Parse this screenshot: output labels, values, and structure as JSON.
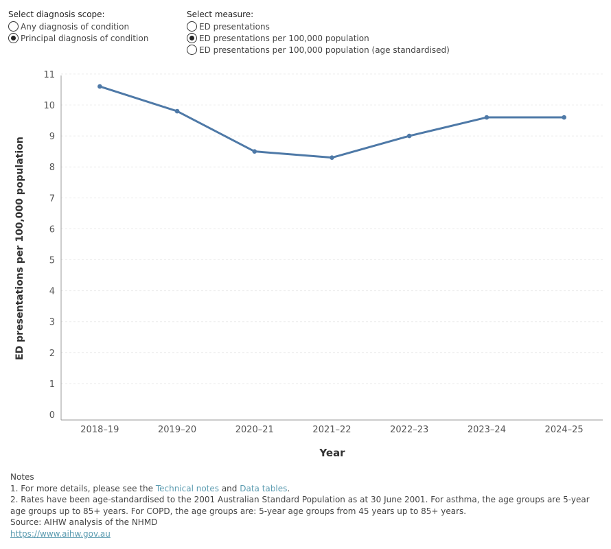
{
  "scope": {
    "title": "Select diagnosis scope:",
    "options": [
      {
        "label": "Any diagnosis of condition",
        "selected": false
      },
      {
        "label": "Principal diagnosis of condition",
        "selected": true
      }
    ]
  },
  "measure": {
    "title": "Select measure:",
    "options": [
      {
        "label": "ED presentations",
        "selected": false
      },
      {
        "label": "ED presentations per 100,000 population",
        "selected": true
      },
      {
        "label": "ED presentations per 100,000 population (age standardised)",
        "selected": false
      }
    ]
  },
  "chart_data": {
    "type": "line",
    "categories": [
      "2018–19",
      "2019–20",
      "2020–21",
      "2021–22",
      "2022–23",
      "2023–24",
      "2024–25"
    ],
    "series": [
      {
        "values": [
          10.6,
          9.8,
          8.5,
          8.3,
          9.0,
          9.6,
          9.6
        ]
      }
    ],
    "xlabel": "Year",
    "ylabel": "ED presentations per 100,000 population",
    "ylim": [
      0,
      11
    ],
    "yticks": [
      0,
      1,
      2,
      3,
      4,
      5,
      6,
      7,
      8,
      9,
      10,
      11
    ],
    "grid": true,
    "line_color": "#4e79a7"
  },
  "notes": {
    "heading": "Notes",
    "line1_prefix": "1. For more details, please see the ",
    "line1_link1": "Technical notes",
    "line1_mid": " and ",
    "line1_link2": "Data tables",
    "line1_suffix": ".",
    "line2": "2. Rates have been age-standardised to the 2001 Australian Standard Population as at 30 June 2001. For asthma, the age groups are 5-year age groups up to 85+ years.  For COPD, the age groups are: 5-year age groups from 45 years up to 85+ years.",
    "source": "Source: AIHW analysis of the NHMD",
    "url": "https://www.aihw.gov.au"
  }
}
